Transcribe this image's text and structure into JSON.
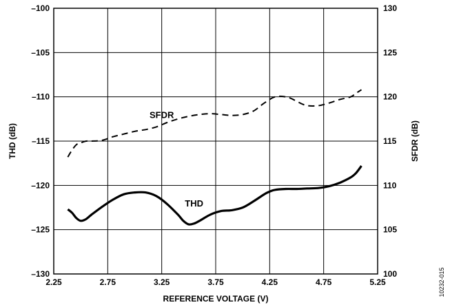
{
  "chart_data": {
    "type": "line",
    "figure_id": "10232-015",
    "xlabel": "REFERENCE VOLTAGE (V)",
    "ylabel_left": "THD (dB)",
    "ylabel_right": "SFDR (dB)",
    "xlim": [
      2.25,
      5.25
    ],
    "ylim_left": [
      -130,
      -100
    ],
    "ylim_right": [
      100,
      130
    ],
    "x_ticks": [
      2.25,
      2.75,
      3.25,
      3.75,
      4.25,
      4.75,
      5.25
    ],
    "x_tick_labels": [
      "2.25",
      "2.75",
      "3.25",
      "3.75",
      "4.25",
      "4.75",
      "5.25"
    ],
    "y_left_ticks": [
      -100,
      -105,
      -110,
      -115,
      -120,
      -125,
      -130
    ],
    "y_left_tick_labels": [
      "–100",
      "–105",
      "–110",
      "–115",
      "–120",
      "–125",
      "–130"
    ],
    "y_right_ticks": [
      130,
      125,
      120,
      115,
      110,
      105,
      100
    ],
    "y_right_tick_labels": [
      "130",
      "125",
      "120",
      "115",
      "110",
      "105",
      "100"
    ],
    "grid": true,
    "series": [
      {
        "name": "THD",
        "axis": "left",
        "style": "solid",
        "color": "#000000",
        "label_at": [
          3.55,
          -122.4
        ],
        "x": [
          2.38,
          2.42,
          2.46,
          2.5,
          2.55,
          2.6,
          2.7,
          2.8,
          2.9,
          3.0,
          3.1,
          3.2,
          3.3,
          3.4,
          3.45,
          3.5,
          3.55,
          3.6,
          3.7,
          3.8,
          3.9,
          4.0,
          4.1,
          4.2,
          4.25,
          4.3,
          4.4,
          4.5,
          4.6,
          4.7,
          4.8,
          4.9,
          5.0,
          5.05,
          5.1
        ],
        "values": [
          -122.7,
          -123.1,
          -123.7,
          -124.0,
          -123.8,
          -123.3,
          -122.4,
          -121.6,
          -121.0,
          -120.8,
          -120.8,
          -121.2,
          -122.1,
          -123.3,
          -124.0,
          -124.4,
          -124.3,
          -124.0,
          -123.3,
          -122.9,
          -122.8,
          -122.5,
          -121.8,
          -121.0,
          -120.7,
          -120.5,
          -120.4,
          -120.4,
          -120.35,
          -120.3,
          -120.1,
          -119.7,
          -119.1,
          -118.6,
          -117.8
        ]
      },
      {
        "name": "SFDR",
        "axis": "right",
        "style": "dashed",
        "color": "#000000",
        "label_at": [
          3.25,
          117.6
        ],
        "x": [
          2.38,
          2.42,
          2.46,
          2.5,
          2.55,
          2.6,
          2.7,
          2.8,
          2.9,
          3.0,
          3.1,
          3.2,
          3.3,
          3.4,
          3.5,
          3.6,
          3.7,
          3.8,
          3.9,
          4.0,
          4.1,
          4.2,
          4.3,
          4.4,
          4.45,
          4.5,
          4.55,
          4.6,
          4.7,
          4.8,
          4.9,
          5.0,
          5.05,
          5.1
        ],
        "values": [
          113.2,
          114.0,
          114.6,
          114.8,
          115.0,
          115.0,
          115.1,
          115.5,
          115.8,
          116.1,
          116.3,
          116.6,
          117.1,
          117.5,
          117.8,
          118.0,
          118.1,
          118.0,
          117.9,
          118.0,
          118.4,
          119.3,
          120.0,
          120.0,
          119.8,
          119.5,
          119.2,
          119.0,
          119.0,
          119.3,
          119.7,
          120.0,
          120.4,
          120.8
        ]
      }
    ]
  }
}
